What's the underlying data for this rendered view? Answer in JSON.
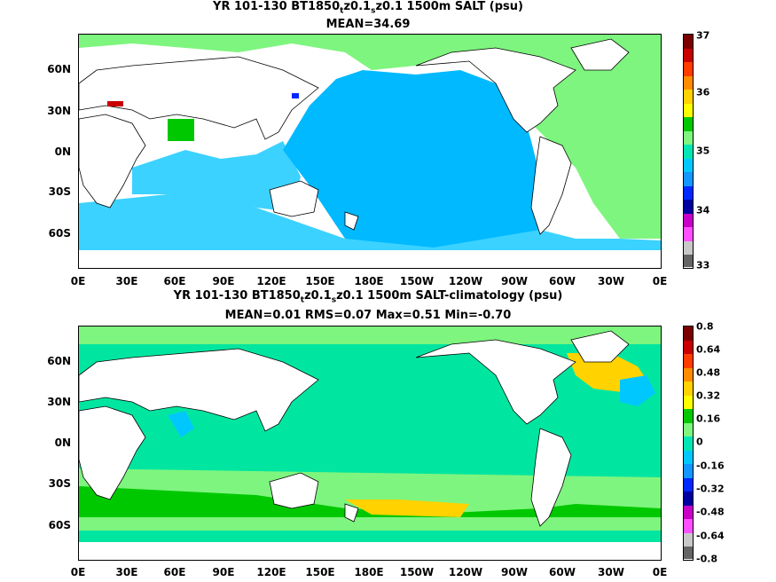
{
  "top": {
    "title_pre": "YR 101-130 BT1850",
    "title_sub1": "t",
    "title_mid": "z0.1",
    "title_sub2": "s",
    "title_post": "z0.1 1500m SALT (psu)",
    "stats": "MEAN=34.69",
    "colorbar_labels": [
      "37",
      "36",
      "35",
      "34",
      "33"
    ],
    "colorbar_colors": [
      "#7a0000",
      "#c80000",
      "#ff3c00",
      "#ff8c00",
      "#ffd200",
      "#ffff00",
      "#00c800",
      "#7ef57e",
      "#00e6b4",
      "#00c8ff",
      "#1496ff",
      "#0028ff",
      "#0000a0",
      "#c800c8",
      "#ff50ff",
      "#c8c8c8",
      "#646464"
    ],
    "colors": {
      "land": "#ffffff",
      "ocean": "#00b9ff",
      "south": "#3cd2ff",
      "atlantic": "#7ef57e",
      "high": "#c80000",
      "green": "#00c800"
    }
  },
  "bottom": {
    "title_pre": "YR 101-130 BT1850",
    "title_sub1": "t",
    "title_mid": "z0.1",
    "title_sub2": "s",
    "title_post": "z0.1 1500m SALT-climatology (psu)",
    "stats": "MEAN=0.01   RMS=0.07   Max=0.51   Min=-0.70",
    "colorbar_labels": [
      "0.8",
      "0.64",
      "0.48",
      "0.32",
      "0.16",
      "0",
      "-0.16",
      "-0.32",
      "-0.48",
      "-0.64",
      "-0.8"
    ],
    "colorbar_colors": [
      "#7a0000",
      "#c80000",
      "#ff3c00",
      "#ff8c00",
      "#ffd200",
      "#ffff00",
      "#00c800",
      "#7ef57e",
      "#00e6b4",
      "#00c8ff",
      "#1496ff",
      "#0028ff",
      "#0000a0",
      "#c800c8",
      "#ff50ff",
      "#c8c8c8",
      "#646464"
    ],
    "colors": {
      "land": "#ffffff",
      "ocean": "#00e6a0",
      "light": "#7ef57e",
      "green": "#00c800",
      "yellow": "#ffd200",
      "cyan": "#00c8ff"
    }
  },
  "y_labels": [
    "60N",
    "30N",
    "0N",
    "30S",
    "60S"
  ],
  "x_labels": [
    "0E",
    "30E",
    "60E",
    "90E",
    "120E",
    "150E",
    "180E",
    "150W",
    "120W",
    "90W",
    "60W",
    "30W",
    "0E"
  ]
}
